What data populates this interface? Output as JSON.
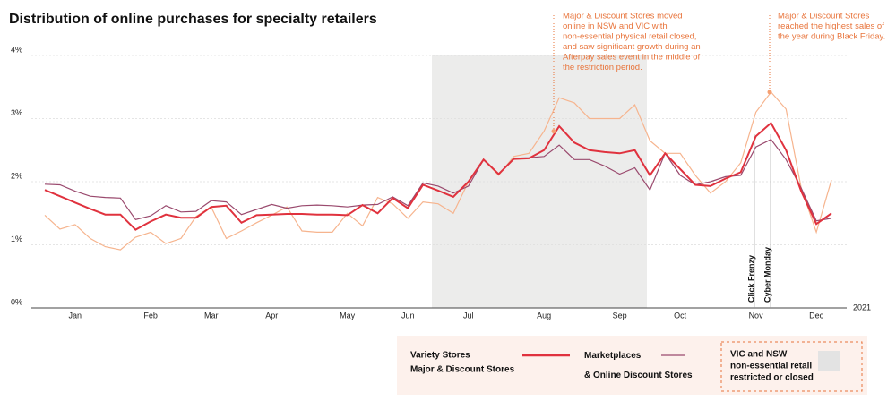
{
  "chart_data": {
    "type": "line",
    "title": "Distribution of online purchases for specialty retailers",
    "categories": [
      null,
      null,
      "Jan",
      null,
      null,
      null,
      null,
      "Feb",
      null,
      null,
      null,
      "Mar",
      null,
      null,
      null,
      "Apr",
      null,
      null,
      null,
      null,
      "May",
      null,
      null,
      null,
      "Jun",
      null,
      null,
      null,
      "Jul",
      null,
      null,
      null,
      null,
      "Aug",
      null,
      null,
      null,
      null,
      "Sep",
      null,
      null,
      null,
      "Oct",
      null,
      null,
      null,
      null,
      "Nov",
      null,
      null,
      null,
      "Dec",
      null
    ],
    "year_label": "2021",
    "ylim": [
      0,
      4
    ],
    "yticks": [
      {
        "value": 0,
        "label": "0%"
      },
      {
        "value": 1,
        "label": "1%"
      },
      {
        "value": 2,
        "label": "2%"
      },
      {
        "value": 3,
        "label": "3%"
      },
      {
        "value": 4,
        "label": "4%"
      }
    ],
    "grid": true,
    "series": [
      {
        "name": "Major & Discount Stores",
        "color": "#f6b48e",
        "values": [
          1.47,
          1.25,
          1.32,
          1.1,
          0.97,
          0.92,
          1.12,
          1.2,
          1.02,
          1.1,
          1.45,
          1.6,
          1.1,
          1.22,
          1.35,
          1.47,
          1.6,
          1.22,
          1.2,
          1.2,
          1.5,
          1.3,
          1.75,
          1.65,
          1.42,
          1.68,
          1.65,
          1.5,
          2.0,
          2.35,
          2.1,
          2.4,
          2.45,
          2.8,
          3.33,
          3.25,
          3.0,
          3.0,
          3.0,
          3.22,
          2.65,
          2.45,
          2.45,
          2.1,
          1.82,
          2.0,
          2.3,
          3.1,
          3.42,
          3.15,
          1.9,
          1.2,
          2.03
        ]
      },
      {
        "name": "Marketplaces & Online Discount Stores",
        "color": "#9a4a6e",
        "values": [
          1.96,
          1.95,
          1.85,
          1.77,
          1.75,
          1.74,
          1.4,
          1.46,
          1.62,
          1.52,
          1.53,
          1.7,
          1.68,
          1.48,
          1.56,
          1.64,
          1.58,
          1.62,
          1.63,
          1.62,
          1.6,
          1.63,
          1.64,
          1.76,
          1.62,
          1.98,
          1.93,
          1.82,
          1.93,
          2.35,
          2.12,
          2.37,
          2.38,
          2.4,
          2.58,
          2.35,
          2.35,
          2.25,
          2.12,
          2.22,
          1.87,
          2.45,
          2.1,
          1.95,
          2.0,
          2.08,
          2.1,
          2.55,
          2.67,
          2.35,
          1.9,
          1.38,
          1.42
        ]
      },
      {
        "name": "Variety Stores",
        "color": "#e0323e",
        "values": [
          1.87,
          1.77,
          1.67,
          1.57,
          1.48,
          1.48,
          1.24,
          1.37,
          1.48,
          1.43,
          1.43,
          1.6,
          1.62,
          1.35,
          1.47,
          1.48,
          1.49,
          1.49,
          1.48,
          1.48,
          1.47,
          1.63,
          1.5,
          1.74,
          1.58,
          1.95,
          1.86,
          1.76,
          2.0,
          2.35,
          2.12,
          2.36,
          2.37,
          2.5,
          2.88,
          2.62,
          2.5,
          2.47,
          2.45,
          2.5,
          2.1,
          2.45,
          2.2,
          1.95,
          1.93,
          2.05,
          2.15,
          2.72,
          2.93,
          2.5,
          1.85,
          1.33,
          1.5
        ]
      }
    ],
    "events": [
      "Click Frenzy",
      "Cyber Monday"
    ],
    "annotations": [
      [
        "Major & Discount Stores moved",
        "online in NSW and VIC with",
        "non-essential physical retail closed,",
        "and saw significant growth during an",
        "Afterpay sales event in the middle of",
        "the restriction period."
      ],
      [
        "Major & Discount Stores",
        "reached the highest sales of",
        "the year during Black Friday."
      ]
    ],
    "restriction_label": [
      "VIC and NSW",
      "non-essential retail",
      "restricted or closed"
    ]
  }
}
